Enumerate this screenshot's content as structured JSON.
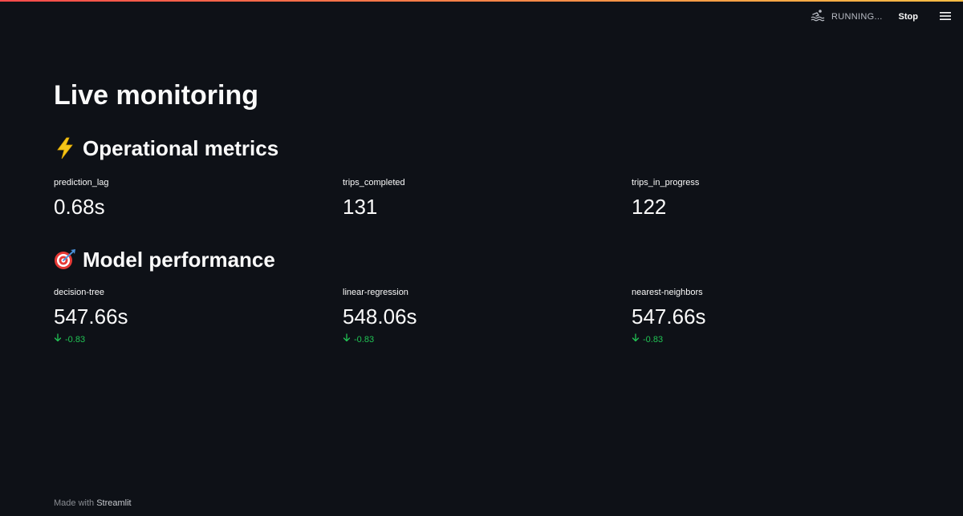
{
  "toolbar": {
    "status_text": "RUNNING...",
    "status_icon": "swimmer-icon",
    "stop_label": "Stop",
    "menu_icon": "hamburger-menu-icon"
  },
  "page": {
    "title": "Live monitoring"
  },
  "sections": [
    {
      "icon": "lightning-icon",
      "title": "Operational metrics",
      "metrics": [
        {
          "label": "prediction_lag",
          "value": "0.68s"
        },
        {
          "label": "trips_completed",
          "value": "131"
        },
        {
          "label": "trips_in_progress",
          "value": "122"
        }
      ]
    },
    {
      "icon": "dart-target-icon",
      "title": "Model performance",
      "metrics": [
        {
          "label": "decision-tree",
          "value": "547.66s",
          "delta": "-0.83"
        },
        {
          "label": "linear-regression",
          "value": "548.06s",
          "delta": "-0.83"
        },
        {
          "label": "nearest-neighbors",
          "value": "547.66s",
          "delta": "-0.83"
        }
      ]
    }
  ],
  "footer": {
    "prefix": "Made with",
    "link": "Streamlit"
  },
  "colors": {
    "background": "#0e1117",
    "text": "#fafafa",
    "delta_positive_green": "#21c354",
    "decoration_start": "#ff4b4b",
    "decoration_end": "#ffbd45"
  }
}
